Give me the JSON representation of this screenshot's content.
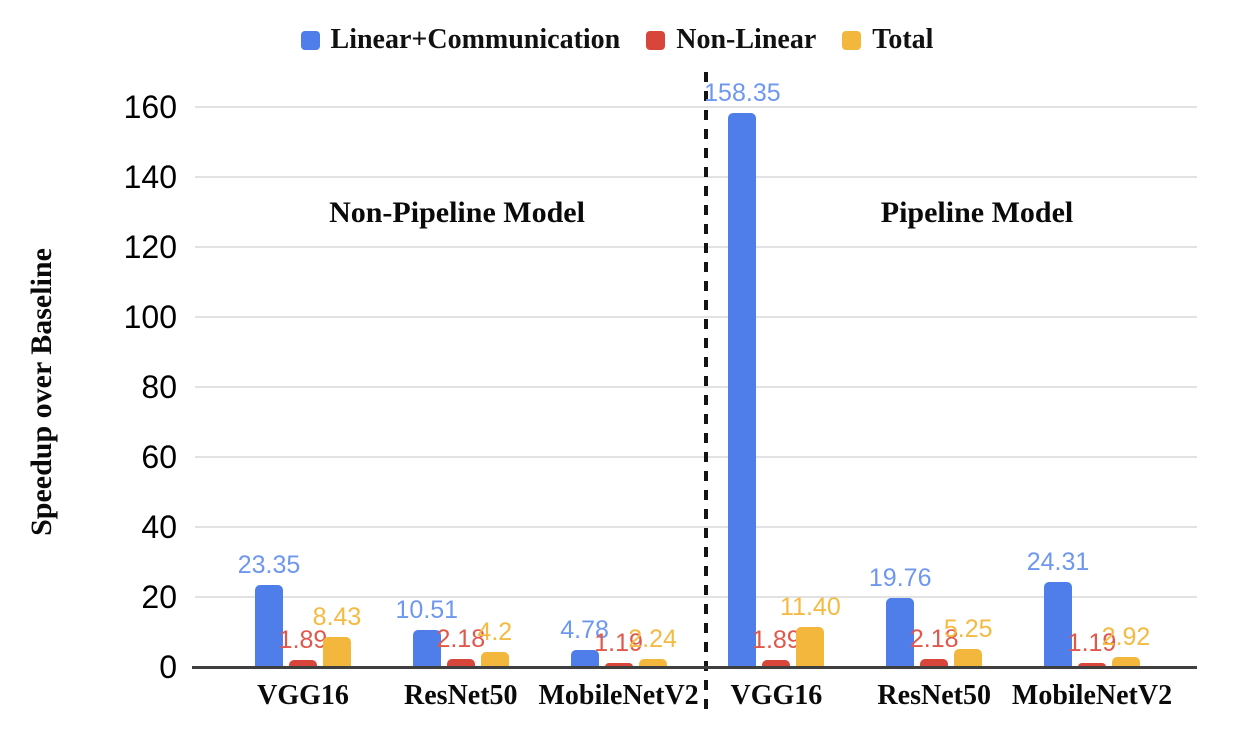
{
  "legend": {
    "items": [
      {
        "label": "Linear+Communication",
        "color": "#4f7de9"
      },
      {
        "label": "Non-Linear",
        "color": "#d8453a"
      },
      {
        "label": "Total",
        "color": "#f3b73d"
      }
    ]
  },
  "chart_data": {
    "type": "bar",
    "title": "",
    "xlabel": "",
    "ylabel": "Speedup over Baseline",
    "ylim": [
      0,
      160
    ],
    "yticks": [
      0,
      20,
      40,
      60,
      80,
      100,
      120,
      140,
      160
    ],
    "grid": true,
    "legend_position": "top",
    "categories": [
      "VGG16",
      "ResNet50",
      "MobileNetV2",
      "VGG16",
      "ResNet50",
      "MobileNetV2"
    ],
    "region_annotations": [
      {
        "label": "Non-Pipeline Model"
      },
      {
        "label": "Pipeline Model"
      }
    ],
    "divider": {
      "style": "dashed",
      "position": "between MobileNetV2 (non-pipeline) and VGG16 (pipeline)"
    },
    "series": [
      {
        "name": "Linear+Communication",
        "color": "#4f7de9",
        "label_color": "#6e97ef",
        "values": [
          23.35,
          10.51,
          4.78,
          158.35,
          19.76,
          24.31
        ],
        "labels": [
          "23.35",
          "10.51",
          "4.78",
          "158.35",
          "19.76",
          "24.31"
        ]
      },
      {
        "name": "Non-Linear",
        "color": "#d8453a",
        "label_color": "#e0584c",
        "values": [
          1.89,
          2.18,
          1.19,
          1.89,
          2.18,
          1.19
        ],
        "labels": [
          "1.89",
          "2.18",
          "1.19",
          "1.89",
          "2.18",
          "1.19"
        ]
      },
      {
        "name": "Total",
        "color": "#f3b73d",
        "label_color": "#f4ba42",
        "values": [
          8.43,
          4.2,
          2.24,
          11.4,
          5.25,
          2.92
        ],
        "labels": [
          "8.43",
          "4.2",
          "2.24",
          "11.40",
          "5.25",
          "2.92"
        ]
      }
    ],
    "colors": {
      "gridline": "#e2e2e2",
      "axis": "#3f3f3f",
      "divider": "#141414",
      "tick_text": "#000000"
    }
  }
}
